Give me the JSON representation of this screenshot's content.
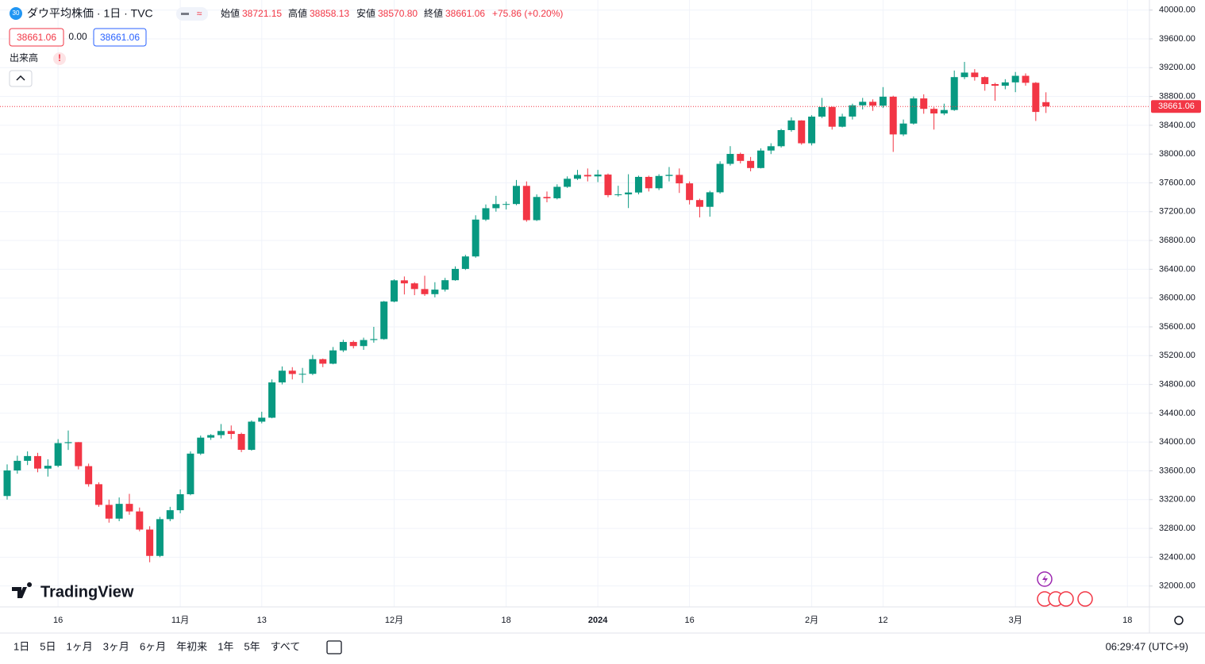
{
  "header": {
    "badge": "30",
    "title": "ダウ平均株価 · 1日 · TVC",
    "open_label": "始値",
    "open": "38721.15",
    "high_label": "高値",
    "high": "38858.13",
    "low_label": "安値",
    "low": "38570.80",
    "close_label": "終値",
    "close": "38661.06",
    "change": "+75.86 (+0.20%)",
    "bid": "38661.06",
    "spread": "0.00",
    "ask": "38661.06",
    "volume_label": "出来高",
    "volume_alert": "!"
  },
  "logo": "TradingView",
  "toolbar": {
    "ranges": [
      "1日",
      "5日",
      "1ヶ月",
      "3ヶ月",
      "6ヶ月",
      "年初来",
      "1年",
      "5年",
      "すべて"
    ],
    "clock": "06:29:47 (UTC+9)"
  },
  "chart_data": {
    "type": "candlestick",
    "up_color": "#089981",
    "down_color": "#f23645",
    "grid": true,
    "categories": [
      null,
      null,
      null,
      null,
      null,
      "16",
      null,
      null,
      null,
      null,
      null,
      null,
      null,
      null,
      null,
      null,
      null,
      "11月",
      null,
      null,
      null,
      null,
      null,
      null,
      null,
      "13",
      null,
      null,
      null,
      null,
      null,
      null,
      null,
      null,
      null,
      null,
      null,
      null,
      "12月",
      null,
      null,
      null,
      null,
      null,
      null,
      null,
      null,
      null,
      null,
      "18",
      null,
      null,
      null,
      null,
      null,
      null,
      null,
      null,
      "2024",
      null,
      null,
      null,
      null,
      null,
      null,
      null,
      null,
      "16",
      null,
      null,
      null,
      null,
      null,
      null,
      null,
      null,
      null,
      null,
      null,
      "2月",
      null,
      null,
      null,
      null,
      null,
      null,
      "12",
      null,
      null,
      null,
      null,
      null,
      null,
      null,
      null,
      null,
      null,
      null,
      null,
      "3月",
      null,
      null,
      null,
      null,
      null,
      null,
      null,
      null,
      null,
      null,
      "18"
    ],
    "open": [
      33250,
      33605,
      33739,
      33805,
      33631,
      33670,
      33985,
      33998,
      33665,
      33414,
      33127,
      32936,
      33141,
      33036,
      32784,
      32418,
      32929,
      33053,
      33275,
      33839,
      34061,
      34096,
      34153,
      34112,
      33892,
      34283,
      34338,
      34828,
      34991,
      34945,
      34947,
      35151,
      35088,
      35273,
      35390,
      35333,
      35417,
      35430,
      35951,
      36246,
      36204,
      36125,
      36054,
      36117,
      36248,
      36405,
      36578,
      37090,
      37248,
      37305,
      37306,
      37558,
      37082,
      37404,
      37386,
      37545,
      37657,
      37710,
      37690,
      37715,
      37430,
      37440,
      37466,
      37683,
      37525,
      37696,
      37711,
      37593,
      37361,
      37267,
      37469,
      37864,
      38002,
      37905,
      37806,
      38049,
      38109,
      38333,
      38467,
      38150,
      38520,
      38654,
      38380,
      38521,
      38677,
      38726,
      38672,
      38797,
      38273,
      38424,
      38773,
      38628,
      38564,
      38612,
      39069,
      39132,
      39069,
      38972,
      38949,
      38996,
      39087,
      38990,
      38721.15,
      null,
      null,
      null,
      null,
      null,
      null,
      null,
      null
    ],
    "high": [
      33690,
      33810,
      33870,
      33850,
      33760,
      34040,
      34160,
      34000,
      33700,
      33440,
      33200,
      33230,
      33280,
      33090,
      32830,
      32960,
      33100,
      33340,
      33870,
      34090,
      34110,
      34250,
      34230,
      34130,
      34300,
      34420,
      34870,
      35050,
      35040,
      35030,
      35210,
      35160,
      35320,
      35420,
      35410,
      35450,
      35600,
      35960,
      36260,
      36300,
      36220,
      36310,
      36220,
      36280,
      36440,
      36600,
      37150,
      37300,
      37420,
      37340,
      37640,
      37620,
      37440,
      37480,
      37580,
      37690,
      37780,
      37800,
      37780,
      37730,
      37560,
      37720,
      37700,
      37700,
      37720,
      37820,
      37800,
      37620,
      37380,
      37490,
      37900,
      38110,
      38020,
      37960,
      38080,
      38150,
      38350,
      38510,
      38470,
      38540,
      38780,
      38660,
      38560,
      38700,
      38780,
      38760,
      38930,
      38810,
      38480,
      38800,
      38830,
      38650,
      38700,
      39160,
      39280,
      39180,
      39080,
      38990,
      39040,
      39140,
      39120,
      39000,
      38858.13,
      null,
      null,
      null,
      null,
      null,
      null,
      null,
      null
    ],
    "low": [
      33200,
      33560,
      33680,
      33580,
      33520,
      33650,
      33890,
      33620,
      33380,
      33100,
      32880,
      32900,
      32990,
      32760,
      32330,
      32400,
      32900,
      33010,
      33260,
      33820,
      34030,
      34050,
      34040,
      33860,
      33880,
      34260,
      34330,
      34800,
      34870,
      34820,
      34930,
      35040,
      35080,
      35250,
      35300,
      35280,
      35380,
      35420,
      35940,
      36050,
      36040,
      36030,
      36010,
      36090,
      36240,
      36390,
      36560,
      37070,
      37200,
      37230,
      37290,
      37060,
      37070,
      37330,
      37370,
      37530,
      37640,
      37620,
      37610,
      37400,
      37410,
      37250,
      37440,
      37480,
      37500,
      37620,
      37460,
      37300,
      37120,
      37130,
      37450,
      37840,
      37870,
      37760,
      37800,
      38000,
      38090,
      38310,
      38130,
      38120,
      38500,
      38340,
      38370,
      38480,
      38620,
      38600,
      38640,
      38030,
      38250,
      38410,
      38560,
      38340,
      38540,
      38600,
      39040,
      39020,
      38880,
      38740,
      38900,
      38860,
      38950,
      38460,
      38570.8,
      null,
      null,
      null,
      null,
      null,
      null,
      null,
      null
    ],
    "close": [
      33605,
      33739,
      33805,
      33631,
      33670,
      33985,
      33998,
      33665,
      33414,
      33127,
      32936,
      33141,
      33036,
      32784,
      32418,
      32929,
      33053,
      33275,
      33839,
      34061,
      34096,
      34153,
      34112,
      33892,
      34283,
      34338,
      34828,
      34991,
      34945,
      34947,
      35151,
      35088,
      35273,
      35390,
      35333,
      35417,
      35430,
      35951,
      36246,
      36204,
      36125,
      36054,
      36117,
      36248,
      36405,
      36578,
      37090,
      37248,
      37305,
      37306,
      37558,
      37082,
      37404,
      37386,
      37545,
      37657,
      37710,
      37690,
      37715,
      37430,
      37440,
      37466,
      37683,
      37525,
      37696,
      37711,
      37593,
      37361,
      37267,
      37469,
      37864,
      38002,
      37905,
      37806,
      38049,
      38109,
      38333,
      38467,
      38150,
      38520,
      38654,
      38380,
      38521,
      38677,
      38726,
      38672,
      38797,
      38273,
      38424,
      38773,
      38628,
      38564,
      38612,
      39069,
      39132,
      39069,
      38972,
      38949,
      38996,
      39087,
      38990,
      38585,
      38661.06,
      null,
      null,
      null,
      null,
      null,
      null,
      null,
      null
    ],
    "ylim": [
      31710,
      40140
    ],
    "yticks": [
      {
        "value": 32000,
        "label": "32000.00"
      },
      {
        "value": 32400,
        "label": "32400.00"
      },
      {
        "value": 32800,
        "label": "32800.00"
      },
      {
        "value": 33200,
        "label": "33200.00"
      },
      {
        "value": 33600,
        "label": "33600.00"
      },
      {
        "value": 34000,
        "label": "34000.00"
      },
      {
        "value": 34400,
        "label": "34400.00"
      },
      {
        "value": 34800,
        "label": "34800.00"
      },
      {
        "value": 35200,
        "label": "35200.00"
      },
      {
        "value": 35600,
        "label": "35600.00"
      },
      {
        "value": 36000,
        "label": "36000.00"
      },
      {
        "value": 36400,
        "label": "36400.00"
      },
      {
        "value": 36800,
        "label": "36800.00"
      },
      {
        "value": 37200,
        "label": "37200.00"
      },
      {
        "value": 37600,
        "label": "37600.00"
      },
      {
        "value": 38000,
        "label": "38000.00"
      },
      {
        "value": 38400,
        "label": "38400.00"
      },
      {
        "value": 38800,
        "label": "38800.00"
      },
      {
        "value": 39200,
        "label": "39200.00"
      },
      {
        "value": 39600,
        "label": "39600.00"
      },
      {
        "value": 40000,
        "label": "40000.00"
      }
    ]
  }
}
